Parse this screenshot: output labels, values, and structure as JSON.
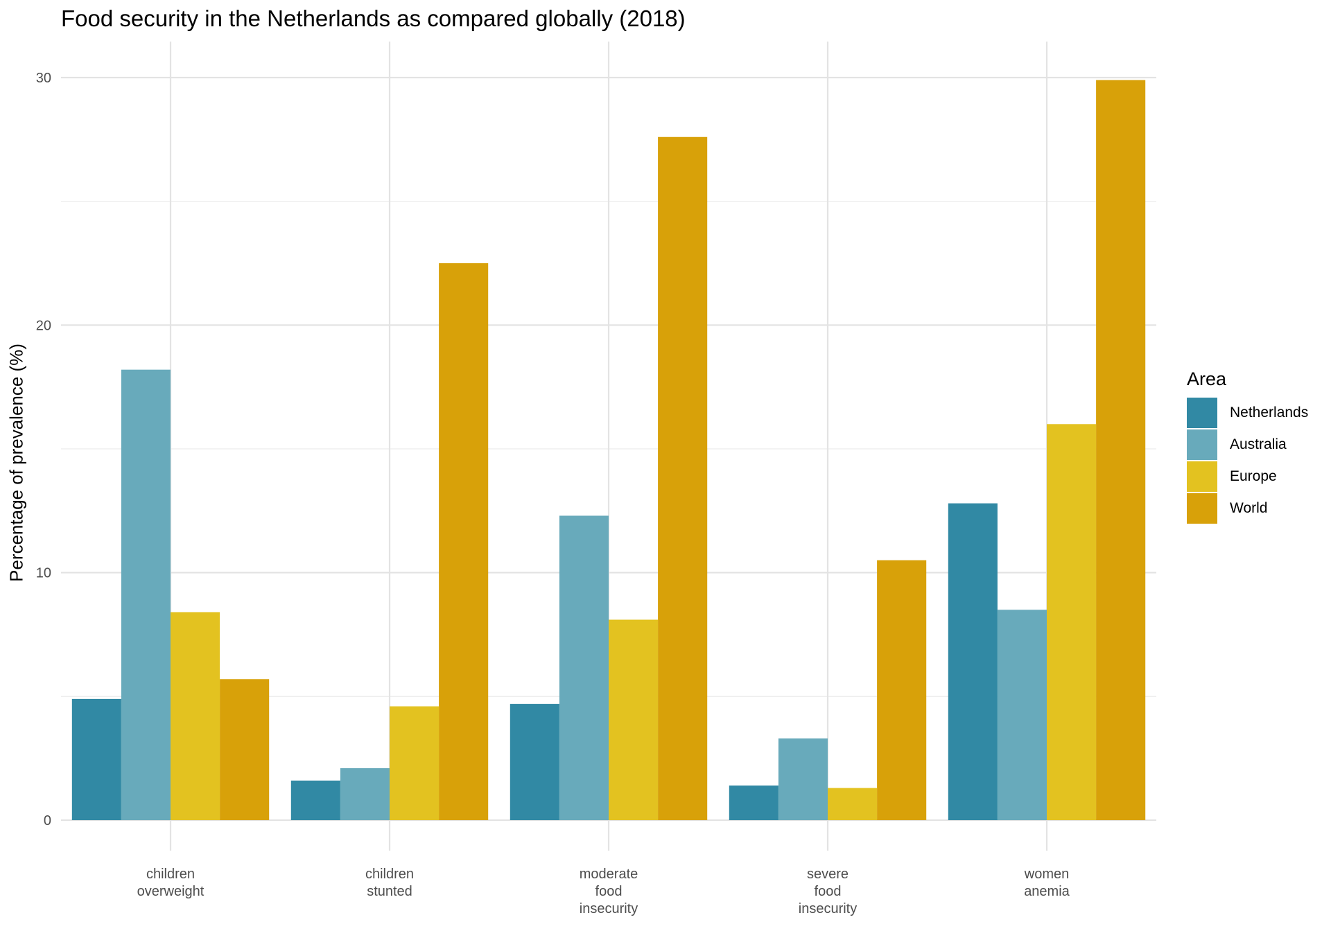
{
  "chart_data": {
    "type": "bar",
    "title": "Food security in the Netherlands as compared globally (2018)",
    "xlabel": "",
    "ylabel": "Percentage of prevalence (%)",
    "ylim": [
      0,
      30
    ],
    "y_ticks": [
      "0",
      "10",
      "20",
      "30"
    ],
    "grid": true,
    "legend_title": "Area",
    "legend_position": "right",
    "categories": [
      [
        "children",
        "overweight"
      ],
      [
        "children",
        "stunted"
      ],
      [
        "moderate",
        "food",
        "insecurity"
      ],
      [
        "severe",
        "food",
        "insecurity"
      ],
      [
        "women",
        "anemia"
      ]
    ],
    "series": [
      {
        "name": "Netherlands",
        "color": "#3189a4",
        "values": [
          4.9,
          1.6,
          4.7,
          1.4,
          12.8
        ]
      },
      {
        "name": "Australia",
        "color": "#68aabb",
        "values": [
          18.2,
          2.1,
          12.3,
          3.3,
          8.5
        ]
      },
      {
        "name": "Europe",
        "color": "#e3c220",
        "values": [
          8.4,
          4.6,
          8.1,
          1.3,
          16.0
        ]
      },
      {
        "name": "World",
        "color": "#d8a109",
        "values": [
          5.7,
          22.5,
          27.6,
          10.5,
          29.9
        ]
      }
    ]
  }
}
